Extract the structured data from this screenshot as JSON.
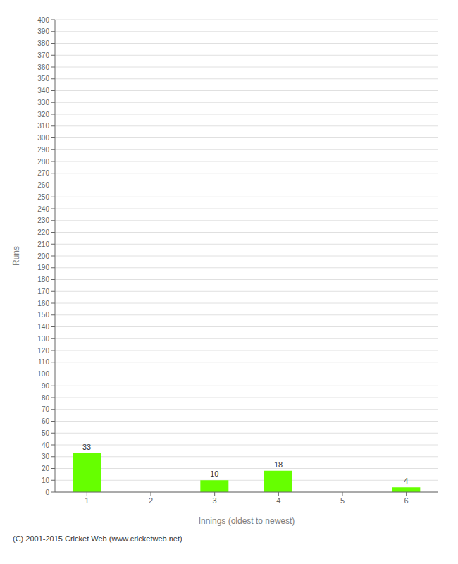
{
  "chart_data": {
    "type": "bar",
    "categories": [
      "1",
      "2",
      "3",
      "4",
      "5",
      "6"
    ],
    "values": [
      33,
      0,
      10,
      18,
      0,
      4
    ],
    "color": "#66ff00",
    "xlabel": "Innings (oldest to newest)",
    "ylabel": "Runs",
    "annotations": [
      "(C) 2001-2015 Cricket Web (www.cricketweb.net)"
    ],
    "ylim": [
      0,
      400
    ],
    "yticks": [
      0,
      10,
      20,
      30,
      40,
      50,
      60,
      70,
      80,
      90,
      100,
      110,
      120,
      130,
      140,
      150,
      160,
      170,
      180,
      190,
      200,
      210,
      220,
      230,
      240,
      250,
      260,
      270,
      280,
      290,
      300,
      310,
      320,
      330,
      340,
      350,
      360,
      370,
      380,
      390,
      400
    ],
    "grid": true,
    "data_labels": true
  }
}
